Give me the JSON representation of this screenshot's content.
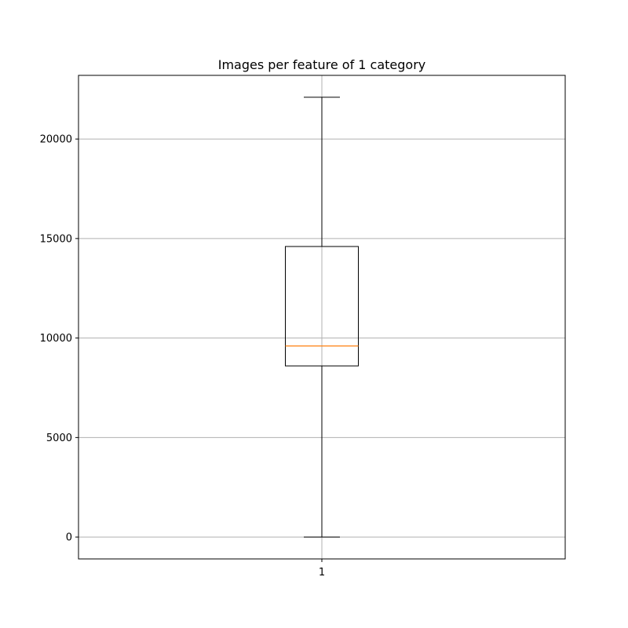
{
  "chart_data": {
    "type": "box",
    "title": "Images per feature of 1 category",
    "xlabel": "",
    "ylabel": "",
    "categories": [
      "1"
    ],
    "boxes": [
      {
        "category": "1",
        "whisker_low": 0,
        "q1": 8600,
        "median": 9600,
        "q3": 14600,
        "whisker_high": 22100
      }
    ],
    "ylim": [
      -1100,
      23200
    ],
    "yticks": [
      0,
      5000,
      10000,
      15000,
      20000
    ],
    "ytick_labels": [
      "0",
      "5000",
      "10000",
      "15000",
      "20000"
    ],
    "grid": true,
    "colors": {
      "box": "#000000",
      "median": "#ff7f0e",
      "grid": "#b0b0b0"
    }
  }
}
